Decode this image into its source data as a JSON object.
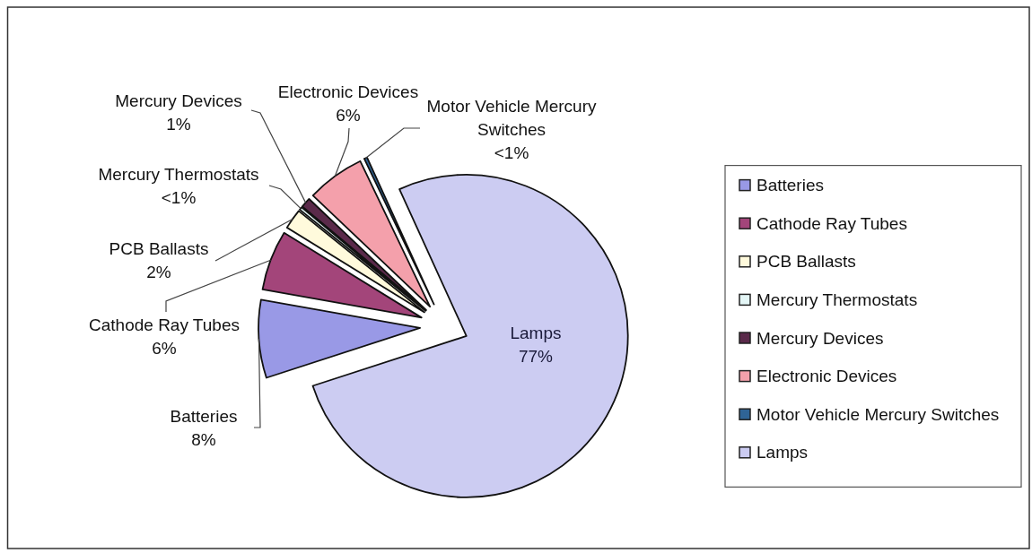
{
  "chart_data": {
    "type": "pie",
    "categories": [
      "Batteries",
      "Cathode Ray Tubes",
      "PCB Ballasts",
      "Mercury Thermostats",
      "Mercury Devices",
      "Electronic Devices",
      "Motor Vehicle Mercury Switches",
      "Lamps"
    ],
    "values": [
      7.8,
      6,
      2,
      0.3,
      1,
      5.8,
      0.3,
      76.8
    ],
    "colors": [
      "#9999e6",
      "#a3457a",
      "#fffadc",
      "#e4f6f6",
      "#5a2a4a",
      "#f4a0ab",
      "#2f6496",
      "#ccccf2"
    ],
    "value_labels": [
      "8%",
      "6%",
      "2%",
      "<1%",
      "1%",
      "6%",
      "<1%",
      "77%"
    ],
    "legend": "right"
  }
}
